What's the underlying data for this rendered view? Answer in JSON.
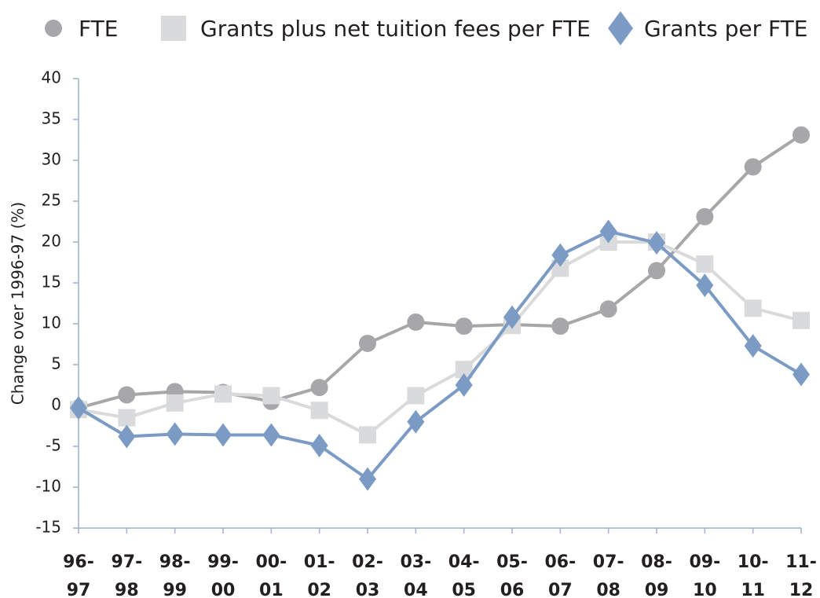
{
  "chart_data": {
    "type": "line",
    "y_label": "Change over 1996-97 (%)",
    "categories": [
      "96-97",
      "97-98",
      "98-99",
      "99-00",
      "00-01",
      "01-02",
      "02-03",
      "03-04",
      "04-05",
      "05-06",
      "06-07",
      "07-08",
      "08-09",
      "09-10",
      "10-11",
      "11-12"
    ],
    "series": [
      {
        "name": "FTE",
        "color": "#a7a7a9",
        "marker": "circle",
        "values": [
          -0.3,
          1.3,
          1.7,
          1.6,
          0.5,
          2.2,
          7.6,
          10.2,
          9.7,
          9.9,
          9.7,
          11.8,
          16.5,
          23.1,
          29.2,
          33.1
        ]
      },
      {
        "name": "Grants plus net tuition fees per FTE",
        "color": "#d9dadb",
        "marker": "square",
        "values": [
          -0.5,
          -1.5,
          0.3,
          1.4,
          1.2,
          -0.6,
          -3.6,
          1.2,
          4.4,
          9.8,
          16.8,
          20.0,
          20.0,
          17.3,
          11.9,
          10.4
        ]
      },
      {
        "name": "Grants per FTE",
        "color": "#7b9bc4",
        "marker": "diamond",
        "values": [
          -0.3,
          -3.8,
          -3.5,
          -3.6,
          -3.6,
          -4.9,
          -9.0,
          -2.0,
          2.5,
          10.8,
          18.4,
          21.3,
          19.9,
          14.7,
          7.3,
          3.8
        ]
      }
    ],
    "ylim": [
      -15,
      40
    ],
    "yticks": [
      -15,
      -10,
      -5,
      0,
      5,
      10,
      15,
      20,
      25,
      30,
      35,
      40
    ],
    "legend": "top",
    "axis_color": "#9bb1cc"
  }
}
